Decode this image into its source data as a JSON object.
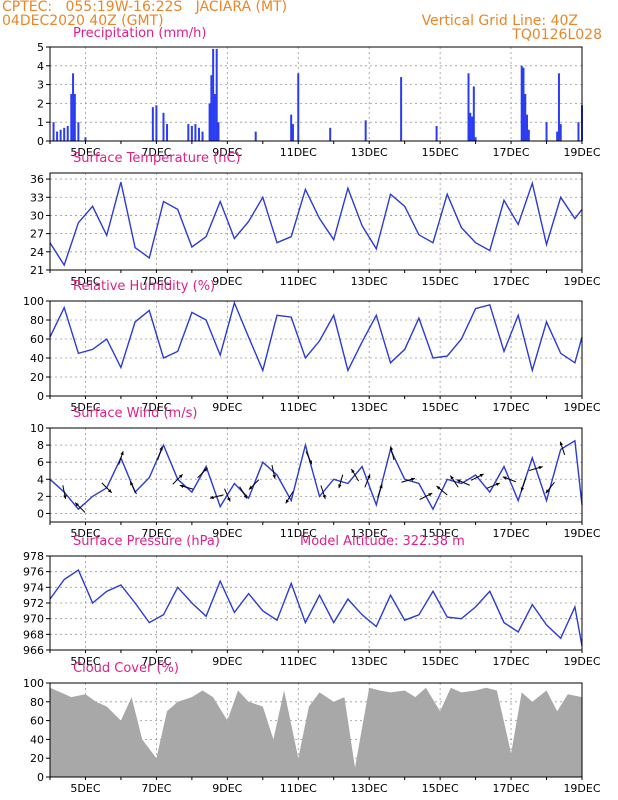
{
  "header": {
    "line1_left": "CPTEC:   055:19W-16:22S   JACIARA (MT)",
    "line2_left": "04DEC2020 40Z (GMT)",
    "line1_right": "Vertical Grid Line: 40Z",
    "line2_right": "TQ0126L028"
  },
  "colors": {
    "header_text": "#e8872a",
    "panel_title": "#e0208a",
    "series_line": "#2a3bd6",
    "bars": "#2b3df0",
    "cloud_fill": "#a8a8a8",
    "wind_arrows": "#000000"
  },
  "x_axis": {
    "start_day": 4,
    "end_day": 19,
    "tick_days": [
      5,
      7,
      9,
      11,
      13,
      15,
      17,
      19
    ],
    "tick_labels": [
      "5DEC",
      "7DEC",
      "9DEC",
      "11DEC",
      "13DEC",
      "15DEC",
      "17DEC",
      "19DEC"
    ]
  },
  "model_altitude": "Model Altitude: 322.38 m",
  "chart_data": [
    {
      "id": "precip",
      "type": "bar",
      "title": "Precipitation (mm/h)",
      "ylim": [
        0,
        5
      ],
      "yticks": [
        0,
        1,
        2,
        3,
        4,
        5
      ],
      "grid": true,
      "x": [
        4.1,
        4.2,
        4.3,
        4.4,
        4.5,
        4.6,
        4.65,
        4.7,
        4.8,
        5.0,
        6.9,
        7.0,
        7.2,
        7.3,
        7.9,
        8.0,
        8.1,
        8.2,
        8.3,
        8.5,
        8.55,
        8.6,
        8.65,
        8.7,
        8.75,
        9.8,
        10.8,
        10.85,
        11.0,
        11.9,
        12.9,
        13.9,
        14.9,
        15.8,
        15.85,
        15.9,
        15.95,
        16.0,
        17.3,
        17.35,
        17.4,
        17.45,
        17.5,
        18.0,
        18.3,
        18.35,
        18.4,
        18.9,
        19.0
      ],
      "values": [
        1.0,
        0.5,
        0.6,
        0.7,
        0.8,
        2.5,
        3.6,
        2.5,
        1.0,
        0.2,
        1.8,
        1.9,
        1.5,
        0.9,
        0.9,
        0.8,
        0.9,
        0.7,
        0.5,
        2.0,
        3.5,
        4.9,
        2.5,
        4.9,
        1.0,
        0.5,
        1.4,
        0.9,
        3.6,
        0.7,
        1.1,
        3.4,
        0.8,
        3.6,
        1.5,
        1.3,
        2.9,
        0.2,
        4.0,
        3.9,
        2.5,
        1.4,
        0.6,
        1.0,
        0.5,
        3.6,
        0.9,
        1.0,
        1.9
      ]
    },
    {
      "id": "temp",
      "type": "line",
      "title": "Surface Temperature (nC)",
      "ylim": [
        21,
        37
      ],
      "yticks": [
        21,
        24,
        27,
        30,
        33,
        36
      ],
      "grid": true,
      "x": [
        4.0,
        4.4,
        4.8,
        5.2,
        5.6,
        6.0,
        6.4,
        6.8,
        7.2,
        7.6,
        8.0,
        8.4,
        8.8,
        9.2,
        9.6,
        10.0,
        10.4,
        10.8,
        11.2,
        11.6,
        12.0,
        12.4,
        12.8,
        13.2,
        13.6,
        14.0,
        14.4,
        14.8,
        15.2,
        15.6,
        16.0,
        16.4,
        16.8,
        17.2,
        17.6,
        18.0,
        18.4,
        18.8,
        19.0
      ],
      "values": [
        25.5,
        21.8,
        28.8,
        31.5,
        26.7,
        35.5,
        24.7,
        23.0,
        32.3,
        31.0,
        24.8,
        26.5,
        32.3,
        26.2,
        29.0,
        33.0,
        25.5,
        26.5,
        34.3,
        29.5,
        26.0,
        34.5,
        28.3,
        24.5,
        33.5,
        31.5,
        26.8,
        25.5,
        33.5,
        28.0,
        25.5,
        24.2,
        32.5,
        28.5,
        35.3,
        25.2,
        33.0,
        29.5,
        31.0
      ]
    },
    {
      "id": "rh",
      "type": "line",
      "title": "Relative Humidity (%)",
      "ylim": [
        0,
        100
      ],
      "yticks": [
        0,
        20,
        40,
        60,
        80,
        100
      ],
      "grid": true,
      "x": [
        4.0,
        4.4,
        4.8,
        5.2,
        5.6,
        6.0,
        6.4,
        6.8,
        7.2,
        7.6,
        8.0,
        8.4,
        8.8,
        9.2,
        9.6,
        10.0,
        10.4,
        10.8,
        11.2,
        11.6,
        12.0,
        12.4,
        12.8,
        13.2,
        13.6,
        14.0,
        14.4,
        14.8,
        15.2,
        15.6,
        16.0,
        16.4,
        16.8,
        17.2,
        17.6,
        18.0,
        18.4,
        18.8,
        19.0
      ],
      "values": [
        62,
        93,
        45,
        49,
        60,
        30,
        78,
        90,
        40,
        47,
        88,
        80,
        43,
        98,
        62,
        27,
        85,
        83,
        40,
        58,
        85,
        27,
        57,
        85,
        35,
        49,
        82,
        40,
        42,
        60,
        92,
        96,
        47,
        85,
        27,
        78,
        45,
        35,
        62
      ]
    },
    {
      "id": "wind",
      "type": "line",
      "title": "Surface Wind (m/s)",
      "ylim": [
        -1,
        10
      ],
      "yticks": [
        0,
        2,
        4,
        6,
        8,
        10
      ],
      "grid": true,
      "x": [
        4.0,
        4.4,
        4.8,
        5.2,
        5.6,
        6.0,
        6.4,
        6.8,
        7.2,
        7.6,
        8.0,
        8.4,
        8.8,
        9.2,
        9.6,
        10.0,
        10.4,
        10.8,
        11.2,
        11.6,
        12.0,
        12.4,
        12.8,
        13.2,
        13.6,
        14.0,
        14.4,
        14.8,
        15.2,
        15.6,
        16.0,
        16.4,
        16.8,
        17.2,
        17.6,
        18.0,
        18.4,
        18.8,
        19.0
      ],
      "values": [
        4.0,
        2.5,
        0.5,
        2.0,
        3.0,
        6.5,
        2.5,
        4.2,
        8.0,
        4.0,
        2.5,
        5.5,
        0.8,
        3.5,
        1.8,
        6.0,
        4.5,
        1.5,
        8.0,
        2.0,
        4.0,
        3.5,
        5.5,
        1.0,
        7.5,
        4.0,
        3.5,
        0.5,
        4.0,
        3.5,
        4.5,
        2.5,
        5.5,
        1.5,
        6.5,
        1.5,
        7.5,
        8.5,
        1.0
      ],
      "arrows_x": [
        4.4,
        4.85,
        5.6,
        6.0,
        6.35,
        7.1,
        7.6,
        7.85,
        8.3,
        8.7,
        9.0,
        9.45,
        9.75,
        10.3,
        10.75,
        11.3,
        11.7,
        12.2,
        12.6,
        12.95,
        13.3,
        13.65,
        14.1,
        14.6,
        15.05,
        15.4,
        15.65,
        16.05,
        16.5,
        16.95,
        17.35,
        17.7,
        18.1,
        18.45
      ],
      "arrows_u": [
        0.2,
        -0.6,
        0.5,
        0.3,
        -0.4,
        0.2,
        0.5,
        -0.7,
        0.3,
        -0.8,
        0.4,
        0.5,
        -0.6,
        0.2,
        -0.5,
        0.4,
        0.3,
        -0.2,
        -0.6,
        0.4,
        0.3,
        -0.2,
        0.7,
        0.6,
        -0.6,
        -0.4,
        -0.7,
        0.6,
        0.5,
        -0.8,
        -0.3,
        0.7,
        -0.4,
        -0.3
      ],
      "arrows_v": [
        -1.0,
        0.6,
        -0.5,
        0.9,
        0.8,
        0.6,
        0.5,
        0.2,
        0.3,
        -0.2,
        -0.9,
        -0.8,
        -0.6,
        -0.9,
        -0.8,
        -0.9,
        -0.9,
        -0.7,
        1.0,
        1.0,
        0.9,
        0.8,
        0.2,
        0.3,
        0.5,
        0.6,
        0.3,
        0.3,
        0.2,
        0.3,
        -0.9,
        0.2,
        -0.5,
        0.9
      ]
    },
    {
      "id": "pres",
      "type": "line",
      "title": "Surface Pressure (hPa)",
      "ylim": [
        966,
        978
      ],
      "yticks": [
        966,
        968,
        970,
        972,
        974,
        976,
        978
      ],
      "grid": true,
      "x": [
        4.0,
        4.4,
        4.8,
        5.2,
        5.6,
        6.0,
        6.4,
        6.8,
        7.2,
        7.6,
        8.0,
        8.4,
        8.8,
        9.2,
        9.6,
        10.0,
        10.4,
        10.8,
        11.2,
        11.6,
        12.0,
        12.4,
        12.8,
        13.2,
        13.6,
        14.0,
        14.4,
        14.8,
        15.2,
        15.6,
        16.0,
        16.4,
        16.8,
        17.2,
        17.6,
        18.0,
        18.4,
        18.8,
        19.0
      ],
      "values": [
        972.5,
        975.0,
        976.2,
        972.0,
        973.5,
        974.3,
        972.0,
        969.5,
        970.5,
        974.0,
        972.0,
        970.3,
        974.8,
        970.8,
        973.2,
        971.0,
        969.8,
        974.5,
        969.5,
        973.0,
        969.5,
        972.5,
        970.5,
        969.0,
        973.0,
        969.8,
        970.5,
        973.5,
        970.2,
        970.0,
        971.5,
        973.5,
        969.5,
        968.3,
        971.8,
        969.2,
        967.5,
        971.5,
        966.5
      ]
    },
    {
      "id": "cloud",
      "type": "area",
      "title": "Cloud Cover (%)",
      "ylim": [
        0,
        100
      ],
      "yticks": [
        0,
        20,
        40,
        60,
        80,
        100
      ],
      "grid": true,
      "x": [
        4.0,
        4.3,
        4.6,
        5.0,
        5.3,
        5.6,
        6.0,
        6.3,
        6.6,
        7.0,
        7.3,
        7.6,
        8.0,
        8.3,
        8.6,
        9.0,
        9.3,
        9.6,
        10.0,
        10.3,
        10.6,
        11.0,
        11.3,
        11.6,
        12.0,
        12.3,
        12.6,
        13.0,
        13.3,
        13.6,
        14.0,
        14.3,
        14.6,
        15.0,
        15.3,
        15.6,
        16.0,
        16.3,
        16.6,
        17.0,
        17.3,
        17.6,
        18.0,
        18.3,
        18.6,
        19.0
      ],
      "values": [
        95,
        90,
        85,
        88,
        80,
        75,
        60,
        85,
        40,
        20,
        70,
        80,
        85,
        92,
        85,
        60,
        92,
        80,
        75,
        40,
        92,
        20,
        75,
        90,
        80,
        85,
        10,
        95,
        92,
        90,
        92,
        85,
        95,
        70,
        95,
        90,
        92,
        95,
        92,
        25,
        90,
        80,
        92,
        70,
        88,
        85
      ]
    }
  ]
}
